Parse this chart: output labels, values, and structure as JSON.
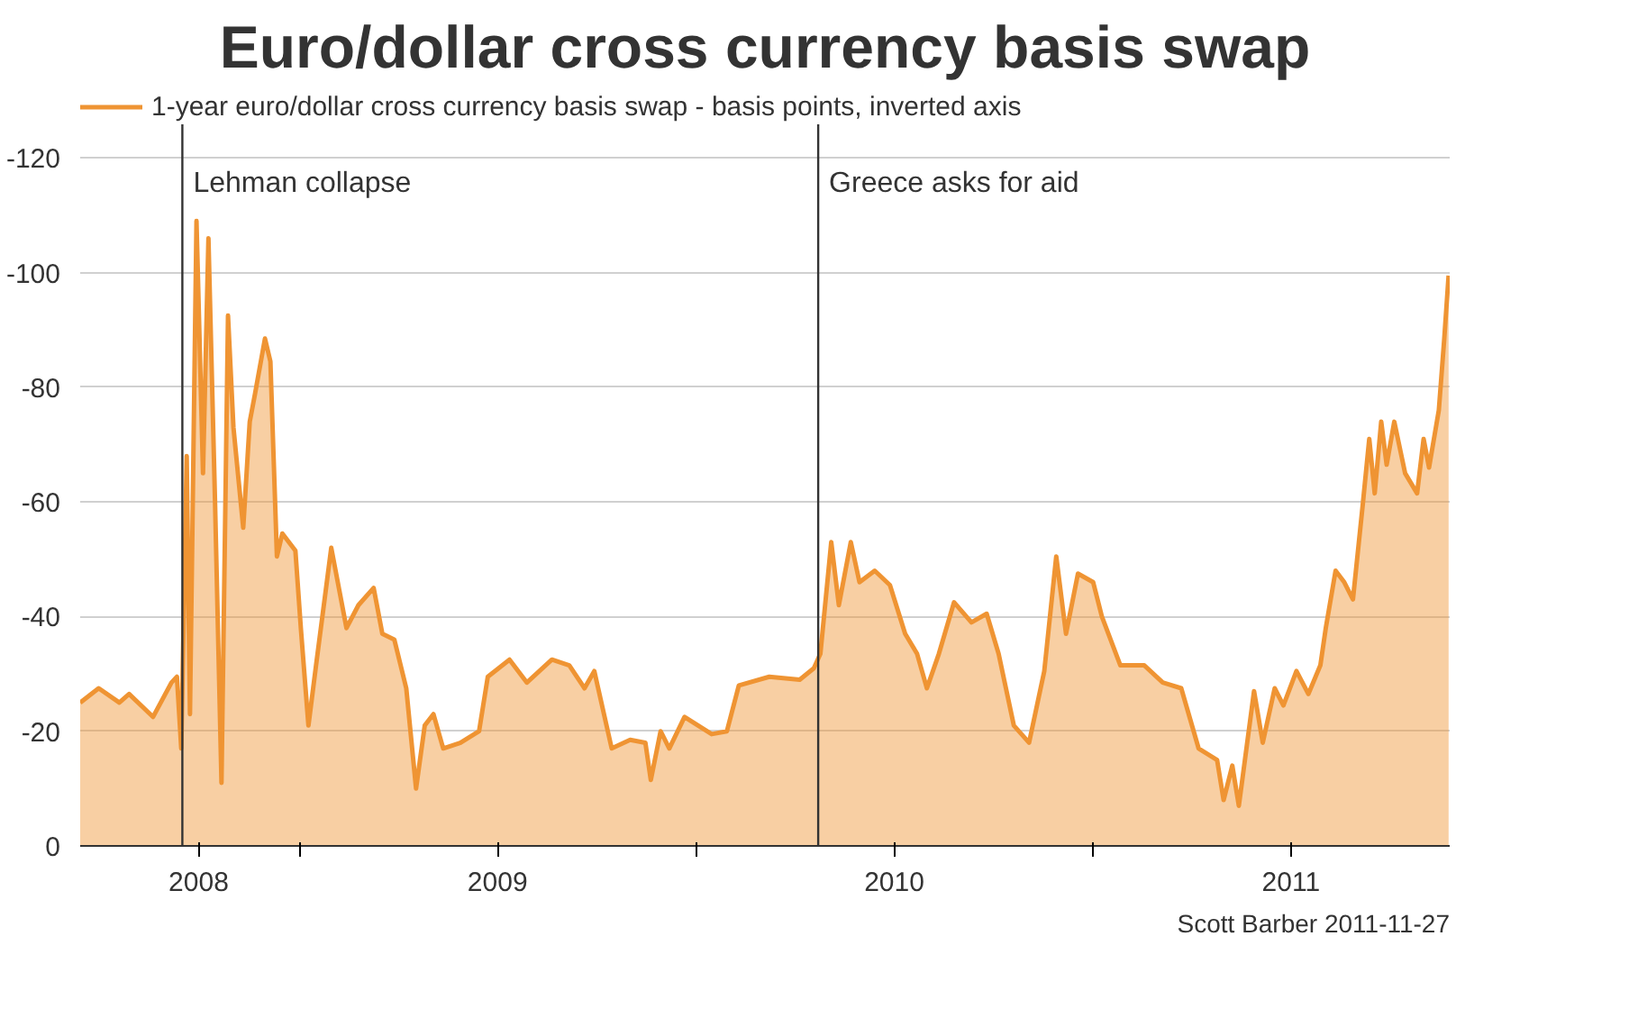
{
  "chart_data": {
    "type": "area",
    "title": "Euro/dollar cross currency basis swap",
    "x": [
      "2008-06-13",
      "2008-06-30",
      "2008-07-19",
      "2008-07-28",
      "2008-08-19",
      "2008-09-05",
      "2008-09-10",
      "2008-09-14",
      "2008-09-19",
      "2008-09-22",
      "2008-09-28",
      "2008-10-04",
      "2008-10-09",
      "2008-10-15",
      "2008-10-21",
      "2008-10-27",
      "2008-11-01",
      "2008-11-10",
      "2008-11-16",
      "2008-11-21",
      "2008-11-30",
      "2008-12-05",
      "2008-12-11",
      "2008-12-16",
      "2008-12-28",
      "2009-01-02",
      "2009-01-09",
      "2009-01-16",
      "2009-01-30",
      "2009-02-13",
      "2009-02-24",
      "2009-03-10",
      "2009-03-18",
      "2009-03-29",
      "2009-04-09",
      "2009-04-18",
      "2009-04-26",
      "2009-05-04",
      "2009-05-13",
      "2009-05-29",
      "2009-06-15",
      "2009-06-23",
      "2009-07-13",
      "2009-07-29",
      "2009-08-21",
      "2009-09-06",
      "2009-09-20",
      "2009-09-29",
      "2009-10-15",
      "2009-11-01",
      "2009-11-15",
      "2009-11-20",
      "2009-11-29",
      "2009-12-07",
      "2009-12-21",
      "2010-01-15",
      "2010-01-29",
      "2010-02-09",
      "2010-03-09",
      "2010-04-06",
      "2010-04-19",
      "2010-04-25",
      "2010-05-05",
      "2010-05-12",
      "2010-05-23",
      "2010-05-31",
      "2010-06-14",
      "2010-06-28",
      "2010-07-12",
      "2010-07-23",
      "2010-08-01",
      "2010-08-12",
      "2010-08-26",
      "2010-09-11",
      "2010-09-25",
      "2010-10-06",
      "2010-10-20",
      "2010-11-03",
      "2010-11-17",
      "2010-11-28",
      "2010-12-07",
      "2010-12-18",
      "2011-01-01",
      "2011-01-09",
      "2011-01-26",
      "2011-02-17",
      "2011-03-06",
      "2011-03-23",
      "2011-04-08",
      "2011-04-25",
      "2011-05-01",
      "2011-05-09",
      "2011-05-15",
      "2011-05-29",
      "2011-06-06",
      "2011-06-17",
      "2011-06-25",
      "2011-07-07",
      "2011-07-18",
      "2011-07-29",
      "2011-08-03",
      "2011-08-12",
      "2011-08-20",
      "2011-08-28",
      "2011-09-06",
      "2011-09-12",
      "2011-09-17",
      "2011-09-23",
      "2011-09-28",
      "2011-10-05",
      "2011-10-15",
      "2011-10-26",
      "2011-11-01",
      "2011-11-06",
      "2011-11-15",
      "2011-11-20",
      "2011-11-24"
    ],
    "series": [
      {
        "name": "1-year euro/dollar cross currency basis swap - basis points, inverted axis",
        "color": "#ef9433",
        "values": [
          -25,
          -27.5,
          -25,
          -26.5,
          -22.5,
          -28.5,
          -29.5,
          -17,
          -68,
          -23,
          -109,
          -65,
          -106,
          -60.5,
          -11,
          -92.5,
          -73,
          -55.5,
          -74,
          -79,
          -88.5,
          -84.5,
          -50.5,
          -54.5,
          -51.5,
          -38,
          -21,
          -31.5,
          -52,
          -38,
          -42,
          -45,
          -37,
          -36,
          -27.5,
          -10,
          -21,
          -23,
          -17,
          -18,
          -20,
          -29.5,
          -32.5,
          -28.5,
          -32.5,
          -31.5,
          -27.5,
          -30.5,
          -17,
          -18.5,
          -18,
          -11.5,
          -20,
          -17,
          -22.5,
          -19.5,
          -20,
          -28,
          -29.5,
          -29,
          -31,
          -33.5,
          -53,
          -42,
          -53,
          -46,
          -48,
          -45.5,
          -37,
          -33.5,
          -27.5,
          -33.5,
          -42.5,
          -39,
          -40.5,
          -33.5,
          -21,
          -18,
          -30.5,
          -50.5,
          -37,
          -47.5,
          -46,
          -40,
          -31.5,
          -31.5,
          -28.5,
          -27.5,
          -17,
          -15,
          -8,
          -14,
          -7,
          -27,
          -18,
          -27.5,
          -24.5,
          -30.5,
          -26.5,
          -31.5,
          -38,
          -48,
          -46,
          -43,
          -59.5,
          -71,
          -61.5,
          -74,
          -66.5,
          -74,
          -65,
          -61.5,
          -71,
          -66,
          -76,
          -88.5,
          -99.5
        ]
      }
    ],
    "xlim": [
      "2008-06-13",
      "2011-11-25"
    ],
    "xticks": [
      {
        "value": "2008-09-30",
        "label": "2008"
      },
      {
        "value": "2009-01-01",
        "label": null
      },
      {
        "value": "2009-07-02",
        "label": "2009"
      },
      {
        "value": "2010-01-01",
        "label": null
      },
      {
        "value": "2010-07-02",
        "label": "2010"
      },
      {
        "value": "2011-01-01",
        "label": null
      },
      {
        "value": "2011-07-02",
        "label": "2011"
      }
    ],
    "ylim": [
      0,
      -132
    ],
    "yticks": [
      -120,
      -100,
      -80,
      -60,
      -40,
      -20,
      0
    ],
    "grid": "y",
    "legend": "top",
    "ref_lines": [
      {
        "axis": "x",
        "value": "2008-09-15",
        "label": "Lehman collapse",
        "color": "#333333"
      },
      {
        "axis": "x",
        "value": "2010-04-23",
        "label": "Greece asks for aid",
        "color": "#333333"
      }
    ],
    "annotations": [
      "Scott Barber 2011-11-27"
    ]
  }
}
